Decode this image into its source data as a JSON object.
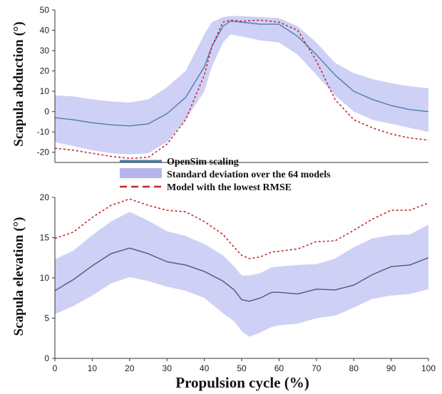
{
  "chart_data": [
    {
      "type": "line",
      "ylabel": "Scapula abduction (°)",
      "xlim": [
        0,
        100
      ],
      "ylim": [
        -25,
        50
      ],
      "yticks": [
        "-20",
        "-10",
        "0",
        "10",
        "20",
        "30",
        "40",
        "50"
      ],
      "x": [
        0,
        5,
        10,
        15,
        20,
        25,
        30,
        35,
        40,
        42,
        45,
        47,
        50,
        55,
        60,
        65,
        70,
        75,
        80,
        85,
        90,
        95,
        100
      ],
      "series": [
        {
          "name": "OpenSim scaling",
          "style": "line",
          "color": "#4a7fb0",
          "values": [
            -3,
            -4,
            -5.5,
            -6.5,
            -7,
            -6,
            -1,
            7,
            22,
            32,
            42,
            44.5,
            44,
            43,
            43,
            37,
            28,
            18,
            10,
            6,
            3,
            1,
            0
          ]
        },
        {
          "name": "Standard deviation over the 64 models",
          "style": "band",
          "color": "#c7c8f5",
          "lower": [
            -15,
            -17,
            -19,
            -20.5,
            -21,
            -20.5,
            -15,
            -4,
            10,
            22,
            34,
            38,
            37,
            35,
            34,
            28,
            18,
            8,
            0,
            -4,
            -6,
            -8,
            -10
          ],
          "upper": [
            8,
            7.5,
            6,
            5,
            4.5,
            6,
            12,
            20,
            38,
            44,
            46.5,
            47,
            47,
            46.5,
            46,
            42,
            34,
            24,
            19,
            16,
            14,
            12.5,
            11.5
          ]
        },
        {
          "name": "Model with the lowest RMSE",
          "style": "dashed",
          "color": "#c62828",
          "values": [
            -18,
            -19,
            -20.5,
            -22,
            -23,
            -22.5,
            -16,
            -4,
            18,
            32,
            44,
            45,
            44.5,
            45,
            44,
            40,
            25,
            6,
            -4,
            -8,
            -11,
            -13,
            -14
          ]
        }
      ]
    },
    {
      "type": "line",
      "ylabel": "Scapula elevation (°)",
      "xlabel": "Propulsion cycle (%)",
      "xlim": [
        0,
        100
      ],
      "ylim": [
        0,
        20
      ],
      "xticks": [
        "0",
        "10",
        "20",
        "30",
        "40",
        "50",
        "60",
        "70",
        "80",
        "90",
        "100"
      ],
      "yticks": [
        "0",
        "5",
        "10",
        "15",
        "20"
      ],
      "x": [
        0,
        5,
        10,
        15,
        20,
        25,
        30,
        35,
        40,
        45,
        48,
        50,
        52,
        55,
        58,
        60,
        65,
        70,
        75,
        80,
        85,
        90,
        95,
        100
      ],
      "series": [
        {
          "name": "OpenSim scaling",
          "style": "line",
          "color": "#4a5a7a",
          "values": [
            8.4,
            9.8,
            11.5,
            13,
            13.7,
            13,
            12,
            11.6,
            10.8,
            9.6,
            8.5,
            7.3,
            7.1,
            7.5,
            8.2,
            8.2,
            8,
            8.6,
            8.5,
            9.1,
            10.4,
            11.4,
            11.6,
            12.5
          ]
        },
        {
          "name": "Standard deviation over the 64 models",
          "style": "band",
          "color": "#c7c8f5",
          "lower": [
            5.5,
            6.5,
            7.8,
            9.3,
            10.1,
            9.6,
            8.9,
            8.4,
            7.5,
            5.6,
            4.6,
            3.4,
            2.7,
            3.2,
            3.9,
            4.1,
            4.3,
            5,
            5.3,
            6.3,
            7.4,
            7.8,
            8,
            8.6
          ],
          "upper": [
            12.3,
            13.4,
            15.3,
            17,
            18.2,
            17.1,
            15.8,
            15.2,
            14.2,
            12.8,
            11.4,
            10.3,
            10.3,
            10.6,
            11.3,
            11.4,
            11.6,
            11.7,
            12.4,
            13.8,
            14.9,
            15.3,
            15.4,
            16.6
          ]
        },
        {
          "name": "Model with the lowest RMSE",
          "style": "dashed",
          "color": "#c62828",
          "values": [
            14.9,
            15.7,
            17.5,
            19,
            19.8,
            19,
            18.4,
            18.2,
            17,
            15.4,
            13.8,
            12.8,
            12.4,
            12.6,
            13.2,
            13.3,
            13.6,
            14.5,
            14.6,
            15.9,
            17.3,
            18.4,
            18.4,
            19.3
          ]
        }
      ]
    }
  ],
  "legend": {
    "items": [
      {
        "label": "OpenSim scaling",
        "style": "line",
        "color": "#4a7fb0"
      },
      {
        "label": "Standard deviation over the 64 models",
        "style": "band",
        "color": "#b3b5ec"
      },
      {
        "label": "Model with the lowest RMSE",
        "style": "dashed",
        "color": "#c62828"
      }
    ]
  }
}
